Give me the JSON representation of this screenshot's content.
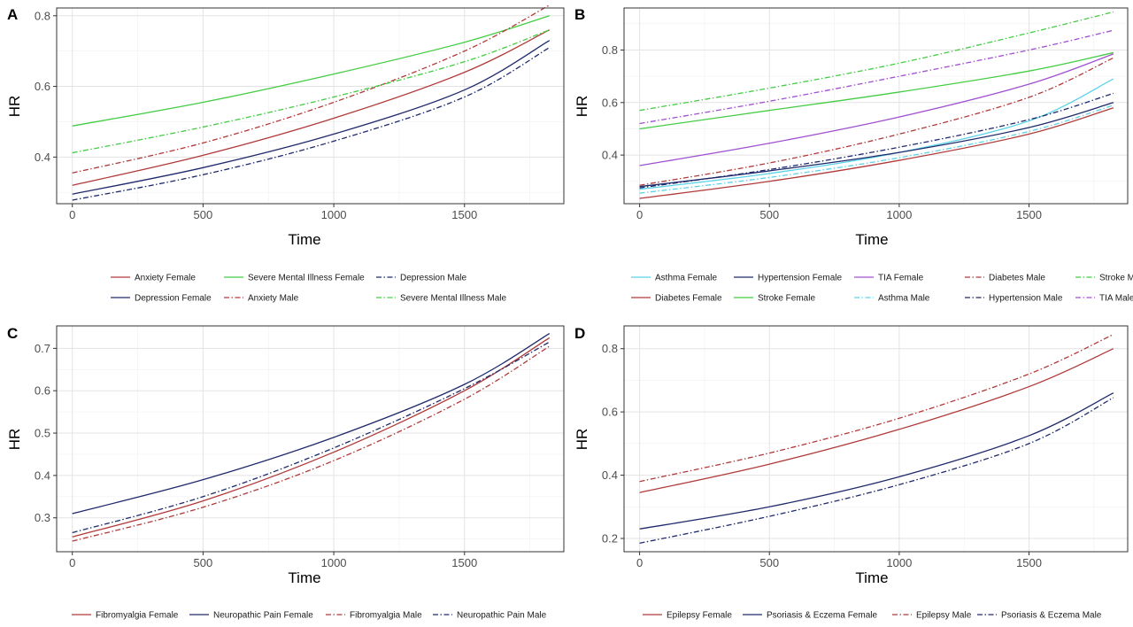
{
  "chart_data": [
    {
      "panel": "A",
      "type": "line",
      "xlabel": "Time",
      "ylabel": "HR",
      "xlim": [
        -60,
        1880
      ],
      "ylim": [
        0.268,
        0.822
      ],
      "xticks": [
        0,
        500,
        1000,
        1500
      ],
      "yticks": [
        0.4,
        0.6,
        0.8
      ],
      "ytick_labels": [
        "0.4",
        "0.6",
        "0.8"
      ],
      "x": [
        0,
        500,
        1000,
        1500,
        1825
      ],
      "grid": true,
      "legend_position": "bottom",
      "series": [
        {
          "name": "Anxiety Female",
          "color": "#b03a3a",
          "dash": "solid",
          "values": [
            0.32,
            0.405,
            0.51,
            0.64,
            0.76
          ]
        },
        {
          "name": "Depression Female",
          "color": "#1f2a6b",
          "dash": "solid",
          "values": [
            0.295,
            0.37,
            0.465,
            0.59,
            0.73
          ]
        },
        {
          "name": "Severe Mental Illness Female",
          "color": "#44cc44",
          "dash": "solid",
          "values": [
            0.488,
            0.555,
            0.635,
            0.725,
            0.8
          ]
        },
        {
          "name": "Anxiety Male",
          "color": "#b03a3a",
          "dash": "dashdot",
          "values": [
            0.355,
            0.44,
            0.555,
            0.7,
            0.83
          ]
        },
        {
          "name": "Depression Male",
          "color": "#1f2a6b",
          "dash": "dashdot",
          "values": [
            0.278,
            0.35,
            0.445,
            0.57,
            0.71
          ]
        },
        {
          "name": "Severe Mental Illness Male",
          "color": "#44cc44",
          "dash": "dashdot",
          "values": [
            0.412,
            0.485,
            0.57,
            0.67,
            0.76
          ]
        }
      ]
    },
    {
      "panel": "B",
      "type": "line",
      "xlabel": "Time",
      "ylabel": "HR",
      "xlim": [
        -60,
        1880
      ],
      "ylim": [
        0.215,
        0.96
      ],
      "xticks": [
        0,
        500,
        1000,
        1500
      ],
      "yticks": [
        0.4,
        0.6,
        0.8
      ],
      "ytick_labels": [
        "0.4",
        "0.6",
        "0.8"
      ],
      "x": [
        0,
        500,
        1000,
        1500,
        1825
      ],
      "grid": true,
      "legend_position": "bottom",
      "series": [
        {
          "name": "Asthma Female",
          "color": "#5bd3e8",
          "dash": "solid",
          "values": [
            0.27,
            0.33,
            0.41,
            0.53,
            0.69
          ]
        },
        {
          "name": "Diabetes Female",
          "color": "#b03a3a",
          "dash": "solid",
          "values": [
            0.235,
            0.3,
            0.38,
            0.48,
            0.58
          ]
        },
        {
          "name": "Hypertension Female",
          "color": "#1f2a6b",
          "dash": "solid",
          "values": [
            0.28,
            0.34,
            0.41,
            0.505,
            0.6
          ]
        },
        {
          "name": "Stroke Female",
          "color": "#44cc44",
          "dash": "solid",
          "values": [
            0.5,
            0.57,
            0.64,
            0.72,
            0.79
          ]
        },
        {
          "name": "TIA Female",
          "color": "#a050d0",
          "dash": "solid",
          "values": [
            0.36,
            0.445,
            0.545,
            0.67,
            0.785
          ]
        },
        {
          "name": "Asthma Male",
          "color": "#5bd3e8",
          "dash": "dashdot",
          "values": [
            0.255,
            0.315,
            0.39,
            0.49,
            0.59
          ]
        },
        {
          "name": "Diabetes Male",
          "color": "#b03a3a",
          "dash": "dashdot",
          "values": [
            0.285,
            0.37,
            0.48,
            0.62,
            0.77
          ]
        },
        {
          "name": "Hypertension Male",
          "color": "#1f2a6b",
          "dash": "dashdot",
          "values": [
            0.275,
            0.345,
            0.43,
            0.535,
            0.635
          ]
        },
        {
          "name": "Stroke Male",
          "color": "#44cc44",
          "dash": "dashdot",
          "values": [
            0.57,
            0.655,
            0.75,
            0.865,
            0.945
          ]
        },
        {
          "name": "TIA Male",
          "color": "#a050d0",
          "dash": "dashdot",
          "values": [
            0.52,
            0.605,
            0.7,
            0.8,
            0.875
          ]
        }
      ]
    },
    {
      "panel": "C",
      "type": "line",
      "xlabel": "Time",
      "ylabel": "HR",
      "xlim": [
        -60,
        1880
      ],
      "ylim": [
        0.22,
        0.753
      ],
      "xticks": [
        0,
        500,
        1000,
        1500
      ],
      "yticks": [
        0.3,
        0.4,
        0.5,
        0.6,
        0.7
      ],
      "ytick_labels": [
        "0.3",
        "0.4",
        "0.5",
        "0.6",
        "0.7"
      ],
      "x": [
        0,
        500,
        1000,
        1500,
        1825
      ],
      "grid": true,
      "legend_position": "bottom",
      "series": [
        {
          "name": "Fibromyalgia Female",
          "color": "#b03a3a",
          "dash": "solid",
          "values": [
            0.255,
            0.34,
            0.455,
            0.6,
            0.725
          ]
        },
        {
          "name": "Neuropathic Pain Female",
          "color": "#1f2a6b",
          "dash": "solid",
          "values": [
            0.31,
            0.39,
            0.49,
            0.615,
            0.735
          ]
        },
        {
          "name": "Fibromyalgia Male",
          "color": "#b03a3a",
          "dash": "dashdot",
          "values": [
            0.245,
            0.325,
            0.435,
            0.58,
            0.705
          ]
        },
        {
          "name": "Neuropathic Pain Male",
          "color": "#1f2a6b",
          "dash": "dashdot",
          "values": [
            0.265,
            0.35,
            0.465,
            0.605,
            0.715
          ]
        }
      ]
    },
    {
      "panel": "D",
      "type": "line",
      "xlabel": "Time",
      "ylabel": "HR",
      "xlim": [
        -60,
        1880
      ],
      "ylim": [
        0.158,
        0.872
      ],
      "xticks": [
        0,
        500,
        1000,
        1500
      ],
      "yticks": [
        0.2,
        0.4,
        0.6,
        0.8
      ],
      "ytick_labels": [
        "0.2",
        "0.4",
        "0.6",
        "0.8"
      ],
      "x": [
        0,
        500,
        1000,
        1500,
        1825
      ],
      "grid": true,
      "legend_position": "bottom",
      "series": [
        {
          "name": "Epilepsy Female",
          "color": "#b03a3a",
          "dash": "solid",
          "values": [
            0.345,
            0.435,
            0.545,
            0.68,
            0.8
          ]
        },
        {
          "name": "Psoriasis & Eczema Female",
          "color": "#1f2a6b",
          "dash": "solid",
          "values": [
            0.23,
            0.3,
            0.395,
            0.525,
            0.66
          ]
        },
        {
          "name": "Epilepsy Male",
          "color": "#b03a3a",
          "dash": "dashdot",
          "values": [
            0.38,
            0.47,
            0.58,
            0.72,
            0.845
          ]
        },
        {
          "name": "Psoriasis & Eczema Male",
          "color": "#1f2a6b",
          "dash": "dashdot",
          "values": [
            0.185,
            0.27,
            0.37,
            0.5,
            0.645
          ]
        }
      ]
    }
  ]
}
